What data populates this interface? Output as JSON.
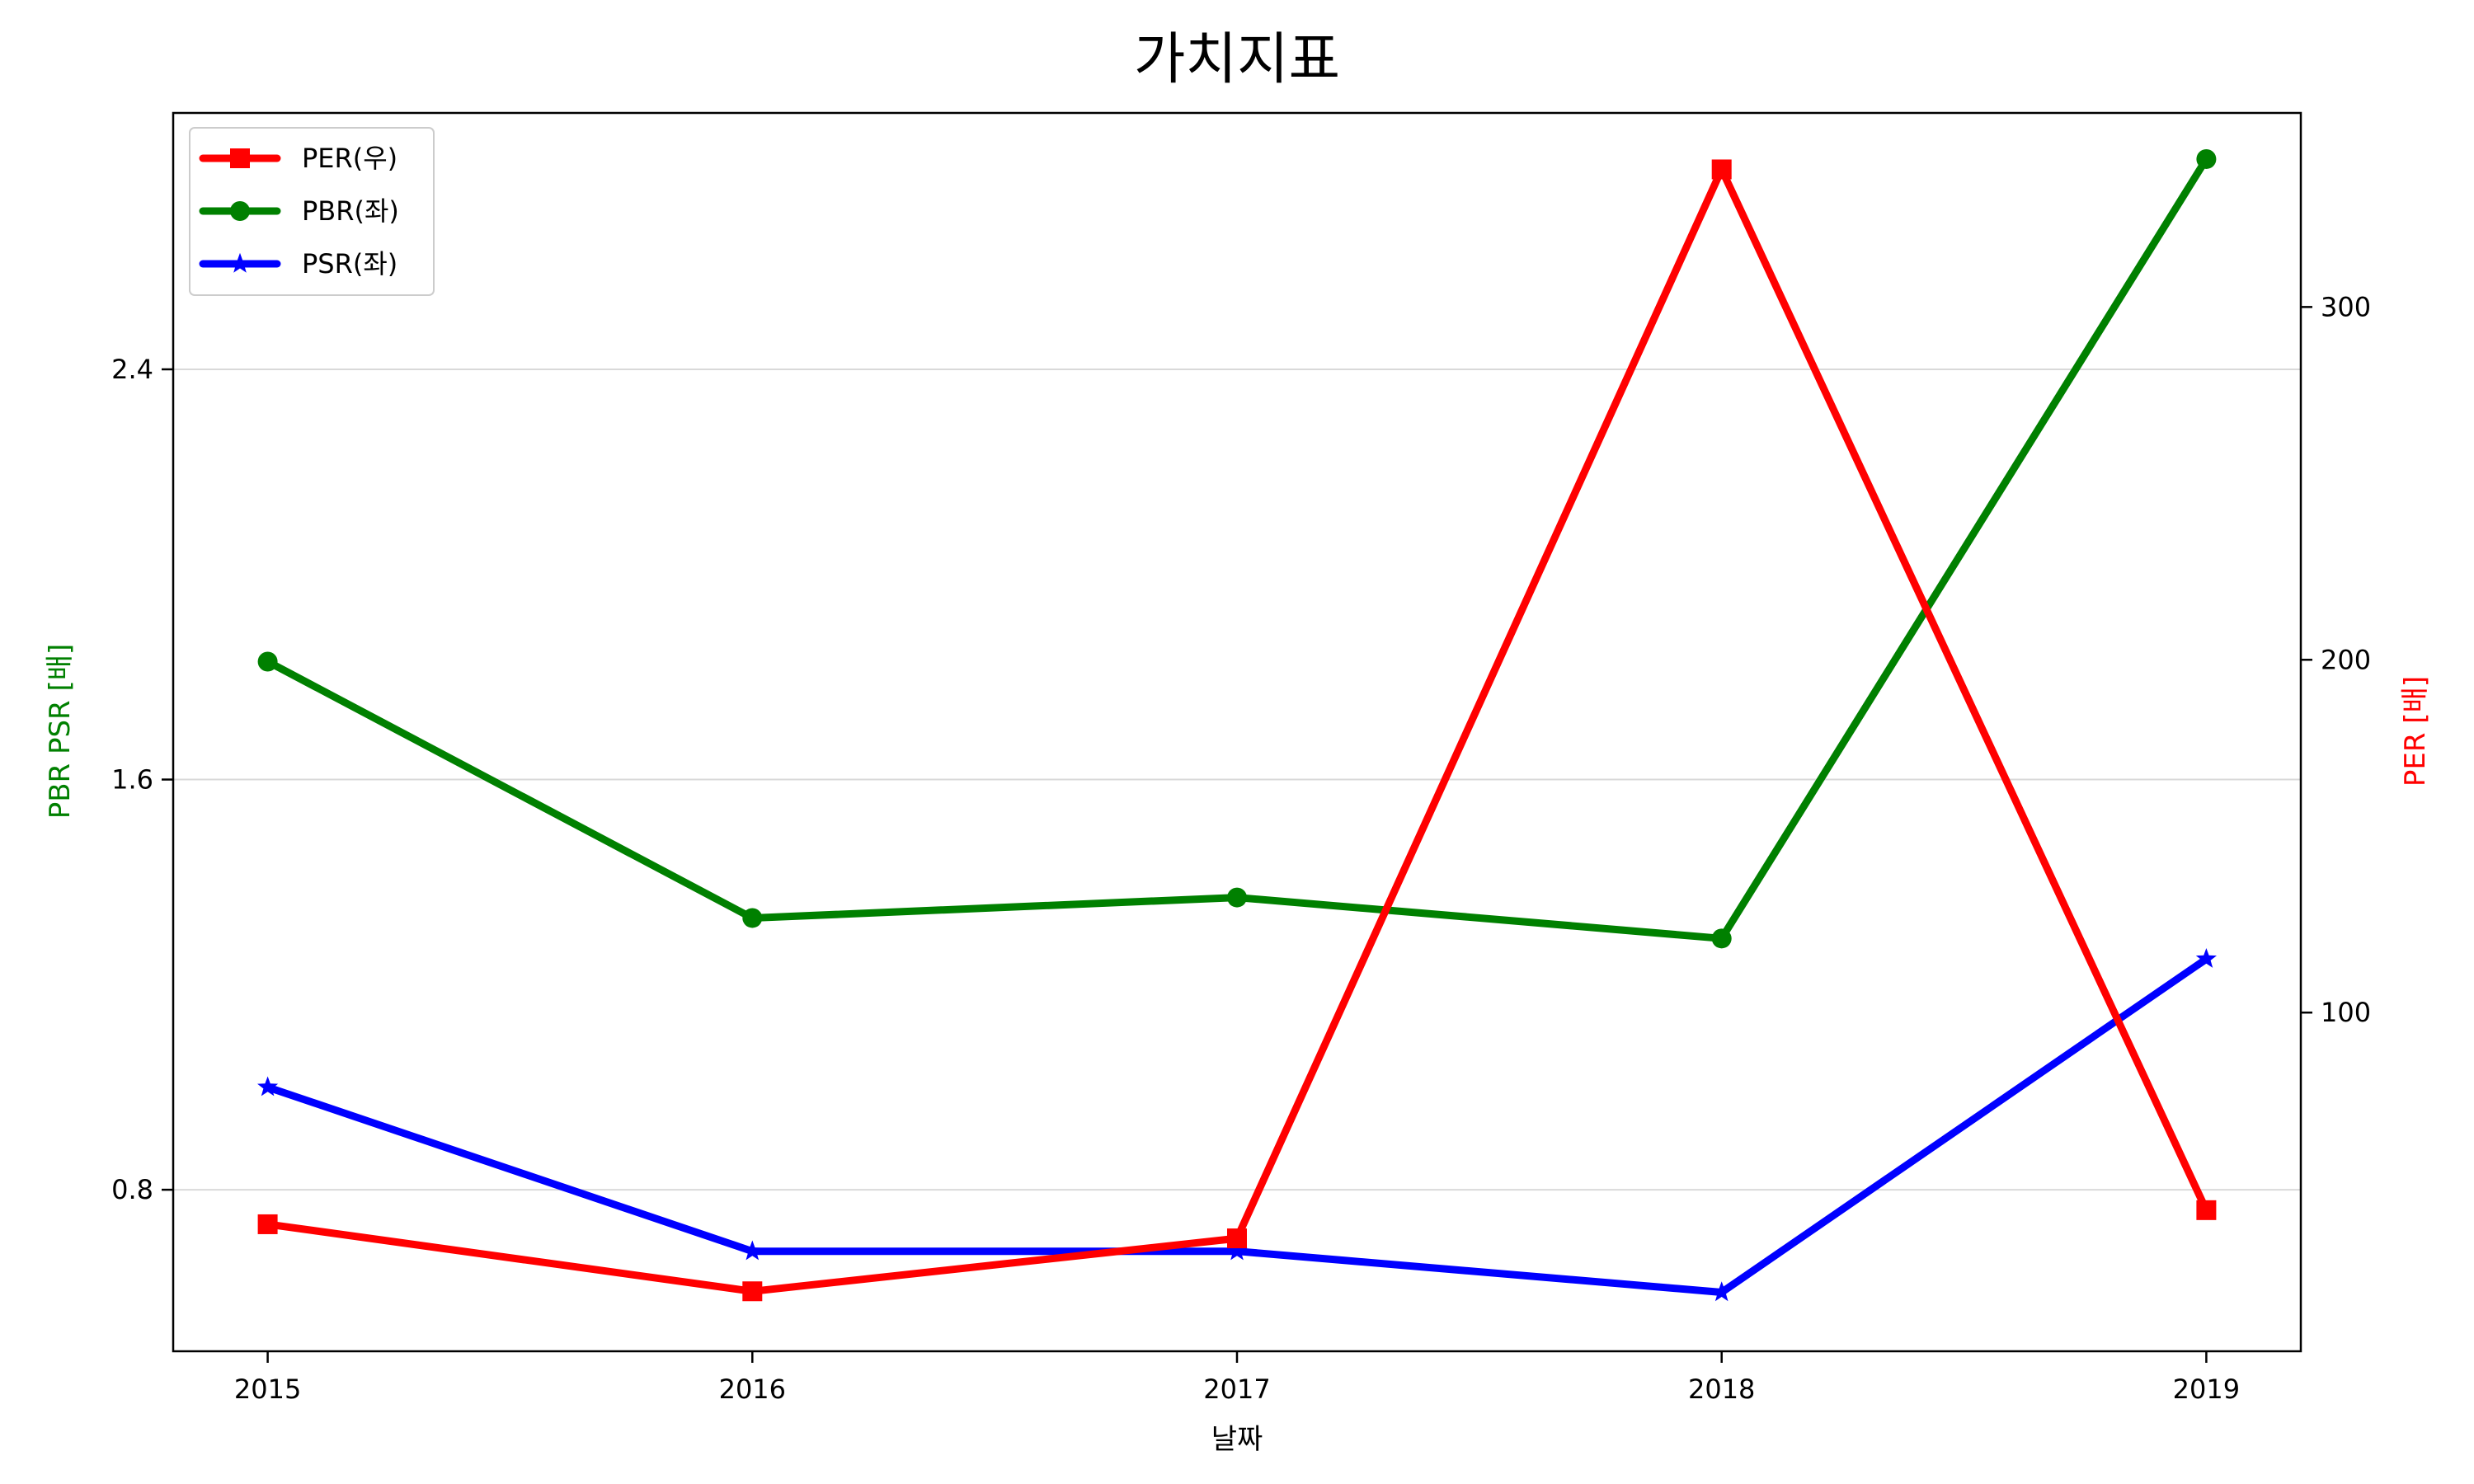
{
  "chart_data": {
    "type": "line",
    "title": "가치지표",
    "xlabel": "날짜",
    "ylabel_left": "PBR PSR [배]",
    "ylabel_right": "PER [배]",
    "x": [
      2015,
      2016,
      2017,
      2018,
      2019
    ],
    "x_tick_labels": [
      "2015",
      "2016",
      "2017",
      "2018",
      "2019"
    ],
    "y_left_ticks": [
      "0.8",
      "1.6",
      "2.4"
    ],
    "y_right_ticks": [
      "100",
      "200",
      "300"
    ],
    "ylim_left": [
      0.485,
      2.9
    ],
    "ylim_right": [
      4,
      355
    ],
    "grid": "horizontal (left axis)",
    "legend_position": "top-left",
    "series": [
      {
        "name": "PER(우)",
        "axis": "right",
        "color": "#ff0000",
        "marker": "square",
        "values": [
          40,
          21,
          36,
          339,
          44
        ]
      },
      {
        "name": "PBR(좌)",
        "axis": "left",
        "color": "#008000",
        "marker": "circle",
        "values": [
          1.83,
          1.33,
          1.37,
          1.29,
          2.81
        ]
      },
      {
        "name": "PSR(좌)",
        "axis": "left",
        "color": "#0000ff",
        "marker": "star",
        "values": [
          1.0,
          0.68,
          0.68,
          0.6,
          1.25
        ]
      }
    ]
  }
}
